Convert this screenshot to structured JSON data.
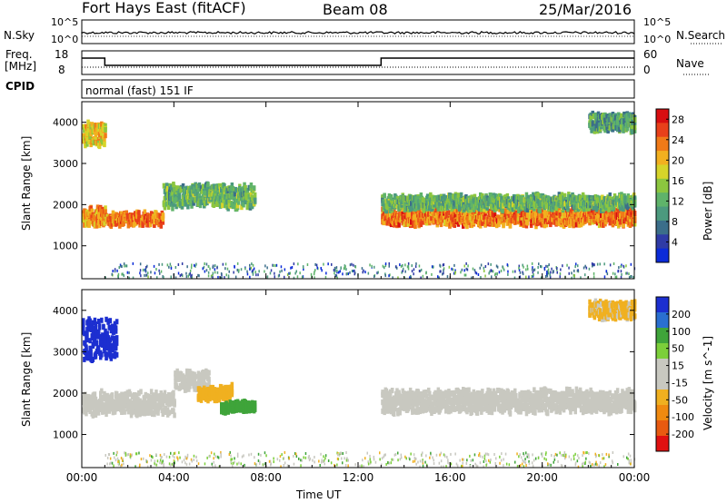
{
  "header": {
    "title": "Fort Hays East (fitACF)",
    "beam": "Beam 08",
    "date": "25/Mar/2016"
  },
  "noise_panel": {
    "left_label": "N.Sky",
    "right_label": "N.Search",
    "left_ticks": [
      "10^5",
      "10^0"
    ],
    "right_ticks": [
      "10^5",
      "10^0"
    ]
  },
  "freq_panel": {
    "left_label_1": "Freq.",
    "left_label_2": "[MHz]",
    "right_label": "Nave",
    "cpid_label": "CPID",
    "left_ticks": [
      "18",
      "8"
    ],
    "right_ticks": [
      "60",
      "0"
    ]
  },
  "mode_text": "normal (fast) 151 IF",
  "colors": {
    "power_scale": [
      "#0b2bd8",
      "#2f3ba6",
      "#3b6e8a",
      "#4c9a7e",
      "#5fb36a",
      "#8cc63f",
      "#d6d42a",
      "#f2b020",
      "#f07a18",
      "#e8401a",
      "#d80e10"
    ],
    "velocity_scale": [
      "#1c2fd0",
      "#2a6fd0",
      "#3fa43a",
      "#7ccf3a",
      "#c8c8c0",
      "#c8c8c0",
      "#f0b020",
      "#f08a10",
      "#e85a10",
      "#e01010"
    ]
  },
  "chart_data": [
    {
      "type": "heatmap",
      "panel": "power",
      "xlabel": "Time UT",
      "ylabel": "Slant Range [km]",
      "xlim": [
        "00:00",
        "00:00"
      ],
      "ylim": [
        200,
        4500
      ],
      "x_ticks": [
        "00:00",
        "04:00",
        "08:00",
        "12:00",
        "16:00",
        "20:00",
        "00:00"
      ],
      "y_ticks": [
        1000,
        2000,
        3000,
        4000
      ],
      "colorbar": {
        "label": "Power [dB]",
        "ticks": [
          4,
          8,
          12,
          16,
          20,
          24,
          28
        ]
      },
      "bands": [
        {
          "t_start": 0.0,
          "t_end": 1.0,
          "range_center": 1700,
          "range_width": 400,
          "power": 22
        },
        {
          "t_start": 1.0,
          "t_end": 3.5,
          "range_center": 1650,
          "range_width": 250,
          "power": 24
        },
        {
          "t_start": 3.5,
          "t_end": 7.5,
          "range_center": 2200,
          "range_width": 500,
          "power": 12
        },
        {
          "t_start": 0.0,
          "t_end": 1.0,
          "range_center": 3700,
          "range_width": 500,
          "power": 20
        },
        {
          "t_start": 13.0,
          "t_end": 24.0,
          "range_center": 1700,
          "range_width": 350,
          "power": 24
        },
        {
          "t_start": 13.0,
          "t_end": 24.0,
          "range_center": 2050,
          "range_width": 300,
          "power": 12
        },
        {
          "t_start": 22.0,
          "t_end": 24.0,
          "range_center": 4000,
          "range_width": 400,
          "power": 10
        }
      ]
    },
    {
      "type": "heatmap",
      "panel": "velocity",
      "xlabel": "Time UT",
      "ylabel": "Slant Range [km]",
      "xlim": [
        "00:00",
        "00:00"
      ],
      "ylim": [
        200,
        4500
      ],
      "x_ticks": [
        "00:00",
        "04:00",
        "08:00",
        "12:00",
        "16:00",
        "20:00",
        "00:00"
      ],
      "y_ticks": [
        1000,
        2000,
        3000,
        4000
      ],
      "colorbar": {
        "label": "Velocity [m s^-1]",
        "ticks": [
          200,
          100,
          50,
          15,
          -15,
          -50,
          -100,
          -200
        ]
      },
      "bands": [
        {
          "t_start": 0.0,
          "t_end": 1.5,
          "range_center": 3300,
          "range_width": 1000,
          "velocity": 220
        },
        {
          "t_start": 0.0,
          "t_end": 4.0,
          "range_center": 1750,
          "range_width": 500,
          "velocity": 0
        },
        {
          "t_start": 4.0,
          "t_end": 5.5,
          "range_center": 2300,
          "range_width": 400,
          "velocity": 0
        },
        {
          "t_start": 5.0,
          "t_end": 6.5,
          "range_center": 2000,
          "range_width": 300,
          "velocity": -60
        },
        {
          "t_start": 6.0,
          "t_end": 7.5,
          "range_center": 1650,
          "range_width": 200,
          "velocity": 45
        },
        {
          "t_start": 13.0,
          "t_end": 24.0,
          "range_center": 1800,
          "range_width": 500,
          "velocity": 0
        },
        {
          "t_start": 22.0,
          "t_end": 24.0,
          "range_center": 4000,
          "range_width": 400,
          "velocity": -40
        }
      ]
    }
  ]
}
